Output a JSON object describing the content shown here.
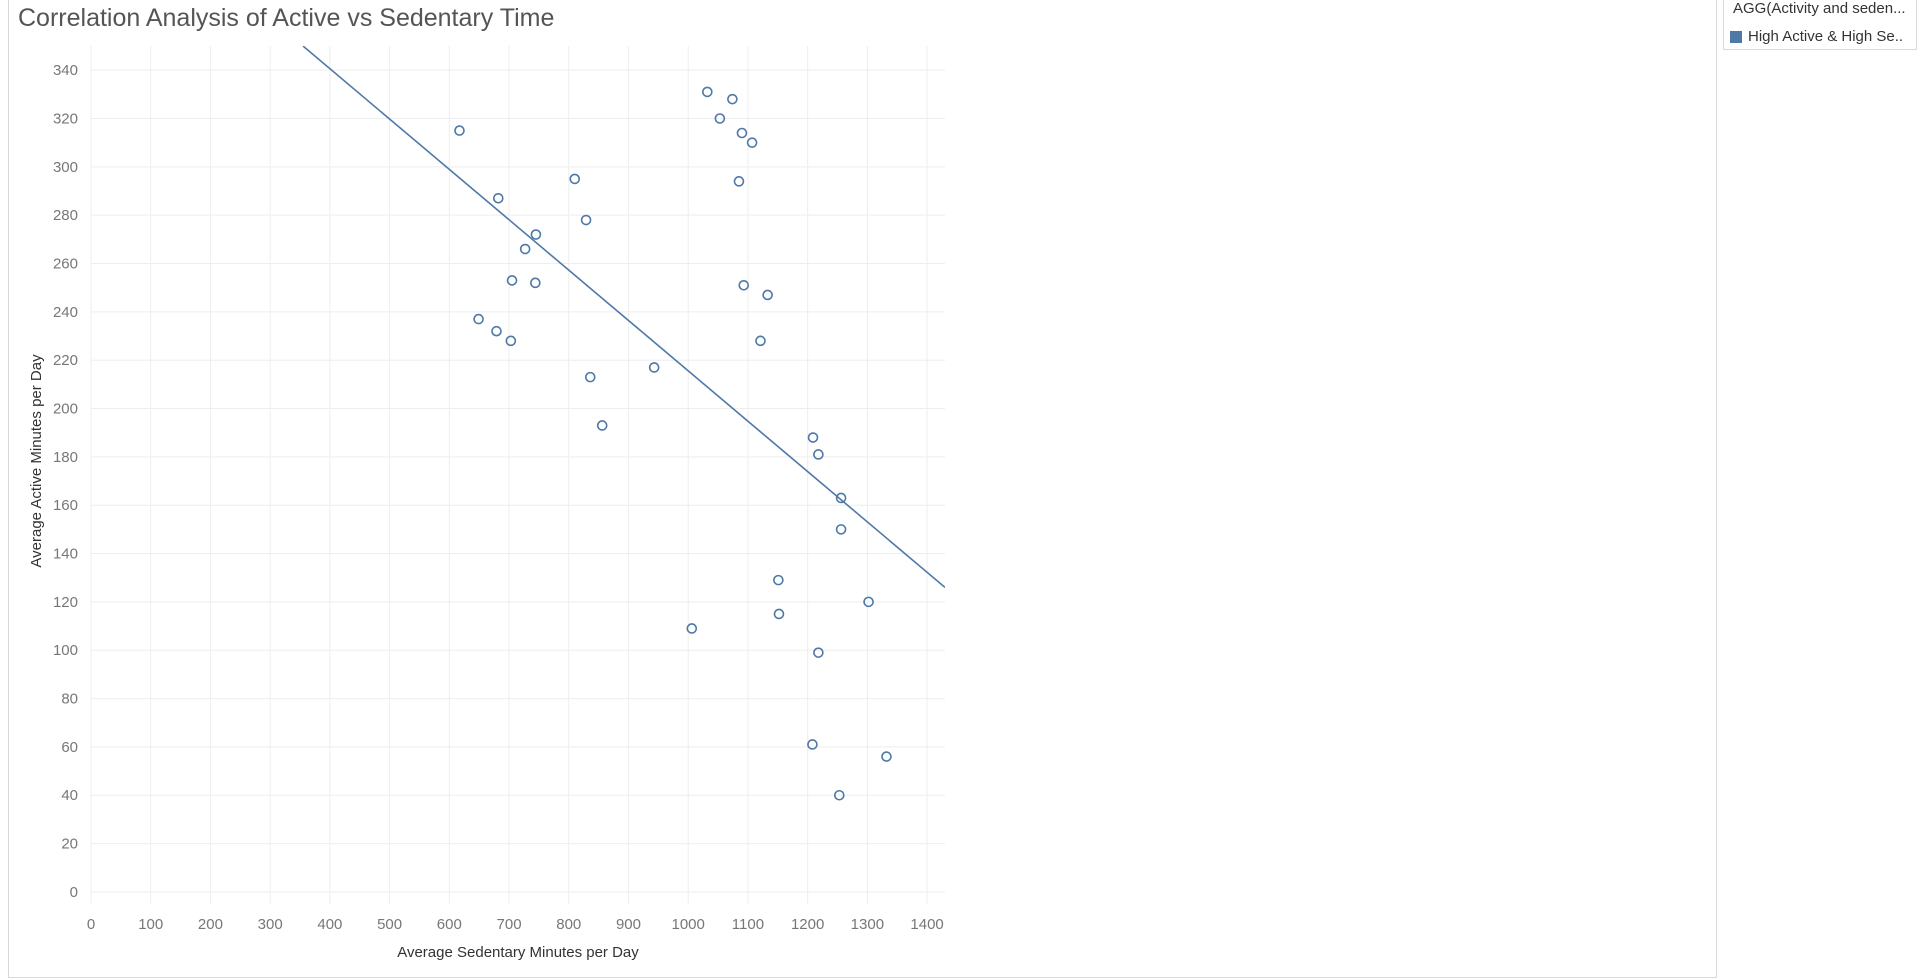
{
  "chart_data": {
    "type": "scatter",
    "title": "Correlation Analysis of Active vs Sedentary Time",
    "xlabel": "Average Sedentary Minutes per Day",
    "ylabel": "Average Active Minutes per Day",
    "xlim": [
      0,
      1430
    ],
    "ylim": [
      -5,
      350
    ],
    "xticks": [
      0,
      100,
      200,
      300,
      400,
      500,
      600,
      700,
      800,
      900,
      1000,
      1100,
      1200,
      1300,
      1400
    ],
    "yticks": [
      0,
      20,
      40,
      60,
      80,
      100,
      120,
      140,
      160,
      180,
      200,
      220,
      240,
      260,
      280,
      300,
      320,
      340
    ],
    "grid": true,
    "marker": "hollow-circle",
    "color": "#4e79a7",
    "legend": {
      "title": "AGG(Activity and seden...",
      "placement": "top-right",
      "entries": [
        {
          "label": "High Active & High Se..",
          "color": "#4e79a7"
        }
      ]
    },
    "trend_line": {
      "x": [
        355,
        1430
      ],
      "y": [
        350,
        126
      ]
    },
    "series": [
      {
        "points": [
          {
            "x": 617,
            "y": 315
          },
          {
            "x": 682,
            "y": 287
          },
          {
            "x": 745,
            "y": 272
          },
          {
            "x": 727,
            "y": 266
          },
          {
            "x": 705,
            "y": 253
          },
          {
            "x": 744,
            "y": 252
          },
          {
            "x": 649,
            "y": 237
          },
          {
            "x": 679,
            "y": 232
          },
          {
            "x": 703,
            "y": 228
          },
          {
            "x": 810,
            "y": 295
          },
          {
            "x": 829,
            "y": 278
          },
          {
            "x": 836,
            "y": 213
          },
          {
            "x": 856,
            "y": 193
          },
          {
            "x": 943,
            "y": 217
          },
          {
            "x": 1006,
            "y": 109
          },
          {
            "x": 1032,
            "y": 331
          },
          {
            "x": 1053,
            "y": 320
          },
          {
            "x": 1074,
            "y": 328
          },
          {
            "x": 1090,
            "y": 314
          },
          {
            "x": 1107,
            "y": 310
          },
          {
            "x": 1085,
            "y": 294
          },
          {
            "x": 1093,
            "y": 251
          },
          {
            "x": 1133,
            "y": 247
          },
          {
            "x": 1121,
            "y": 228
          },
          {
            "x": 1209,
            "y": 188
          },
          {
            "x": 1218,
            "y": 181
          },
          {
            "x": 1256,
            "y": 163
          },
          {
            "x": 1256,
            "y": 150
          },
          {
            "x": 1151,
            "y": 129
          },
          {
            "x": 1152,
            "y": 115
          },
          {
            "x": 1302,
            "y": 120
          },
          {
            "x": 1218,
            "y": 99
          },
          {
            "x": 1208,
            "y": 61
          },
          {
            "x": 1332,
            "y": 56
          },
          {
            "x": 1253,
            "y": 40
          }
        ]
      }
    ]
  }
}
